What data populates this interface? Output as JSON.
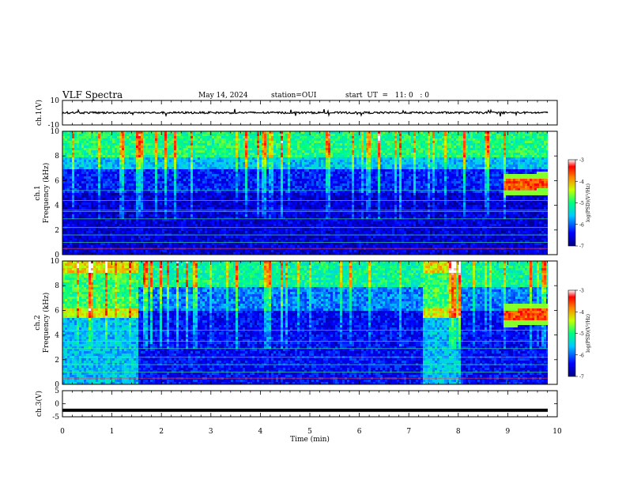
{
  "header": {
    "title": "VLF Spectra",
    "date": "May 14, 2024",
    "station": "station=OUI",
    "start": "start  UT  =   11: 0   : 0"
  },
  "chart_data": [
    {
      "type": "line",
      "panel": "ch1-waveform",
      "ylabel": "ch.1(V)",
      "yticks": [
        "10",
        "-10"
      ],
      "ylim": [
        -10,
        10
      ],
      "xlim": [
        0,
        10
      ],
      "trace_level": 0,
      "description_visible": "noisy waveform trace centered near 0 V"
    },
    {
      "type": "heatmap",
      "panel": "ch1-spectrogram",
      "ylabel": "ch.1\nFrequency (kHz)",
      "ylabel_line1": "ch.1",
      "ylabel_line2": "Frequency (kHz)",
      "yticks": [
        "0",
        "2",
        "4",
        "6",
        "8",
        "10"
      ],
      "ylim": [
        0,
        10
      ],
      "xlim": [
        0,
        10
      ],
      "colorbar": {
        "label": "log(PSD)(V²/Hz)",
        "ticks": [
          "-3",
          "-4",
          "-5",
          "-6",
          "-7"
        ],
        "range": [
          -7,
          -3
        ]
      },
      "bands": [
        {
          "x0": 0,
          "x1": 9.83,
          "f0": 0,
          "f1": 5.0,
          "level": -6.7
        },
        {
          "x0": 0,
          "x1": 9.83,
          "f0": 5.0,
          "f1": 7.0,
          "level": -6.0
        },
        {
          "x0": 0,
          "x1": 9.83,
          "f0": 7.0,
          "f1": 10,
          "level": -5.0
        }
      ],
      "emission": {
        "x0": 8.9,
        "x1": 9.83,
        "f0": 5.2,
        "f1": 6.2,
        "level": -3.8
      },
      "lines_khz": [
        0.5,
        1.0,
        1.6,
        2.2,
        2.9,
        3.5,
        3.6,
        4.4,
        5.2
      ]
    },
    {
      "type": "heatmap",
      "panel": "ch2-spectrogram",
      "ylabel_line1": "ch.2",
      "ylabel_line2": "Frequency (kHz)",
      "yticks": [
        "0",
        "2",
        "4",
        "6",
        "8",
        "10"
      ],
      "ylim": [
        0,
        10
      ],
      "xlim": [
        0,
        10
      ],
      "colorbar": {
        "label": "log(PSD)(V²/Hz)",
        "ticks": [
          "-3",
          "-4",
          "-5",
          "-6",
          "-7"
        ],
        "range": [
          -7,
          -3
        ]
      },
      "bright_segments": [
        [
          0,
          1.52
        ],
        [
          7.28,
          8.05
        ]
      ],
      "emission": {
        "x0": 8.9,
        "x1": 9.83,
        "f0": 5.0,
        "f1": 6.3,
        "level": -3.8
      }
    },
    {
      "type": "line",
      "panel": "ch3-waveform",
      "ylabel": "ch.3(V)",
      "yticks": [
        "5",
        "0",
        "-5"
      ],
      "ylim": [
        -5,
        5
      ],
      "xlim": [
        0,
        10
      ],
      "trace_level": -2.5
    }
  ],
  "xaxis": {
    "label": "Time (min)",
    "ticks": [
      "0",
      "1",
      "2",
      "3",
      "4",
      "5",
      "6",
      "7",
      "8",
      "9",
      "10"
    ]
  }
}
